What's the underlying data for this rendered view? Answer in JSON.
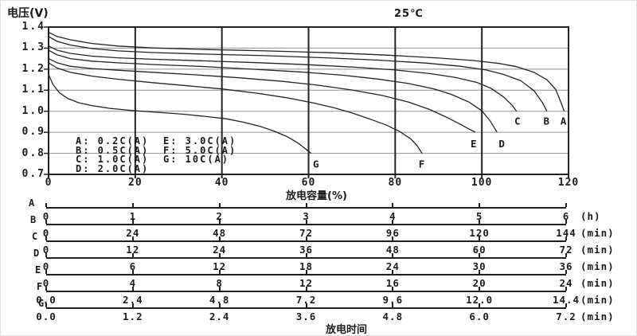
{
  "header": {
    "y_axis_title": "电压(V)",
    "temperature": "25℃"
  },
  "legend": {
    "col1": [
      "A: 0.2C(A)",
      "B: 0.5C(A)",
      "C: 1.0C(A)",
      "D: 2.0C(A)"
    ],
    "col2": [
      "E: 3.0C(A)",
      "F: 5.0C(A)",
      "G: 10C(A)"
    ]
  },
  "chart_data": {
    "type": "line",
    "title": "25℃",
    "xlabel": "放电容量(%)",
    "ylabel": "电压(V)",
    "xlim": [
      0,
      120
    ],
    "ylim": [
      0.7,
      1.4
    ],
    "x_ticks": [
      0,
      20,
      40,
      60,
      80,
      100,
      120
    ],
    "y_ticks": [
      1.4,
      1.3,
      1.2,
      1.1,
      1.0,
      0.9,
      0.8,
      0.7
    ],
    "grid": true,
    "legend_position": "inside-lower-left",
    "series": [
      {
        "name": "A",
        "rate": "0.2C(A)",
        "label_at": [
          118.8,
          0.952
        ],
        "points": [
          [
            0,
            1.375
          ],
          [
            2,
            1.355
          ],
          [
            5,
            1.34
          ],
          [
            10,
            1.322
          ],
          [
            16,
            1.31
          ],
          [
            24,
            1.301
          ],
          [
            35,
            1.294
          ],
          [
            50,
            1.287
          ],
          [
            65,
            1.278
          ],
          [
            78,
            1.267
          ],
          [
            90,
            1.253
          ],
          [
            98,
            1.241
          ],
          [
            104,
            1.227
          ],
          [
            108,
            1.212
          ],
          [
            112,
            1.185
          ],
          [
            115,
            1.15
          ],
          [
            117,
            1.105
          ],
          [
            118.3,
            1.04
          ],
          [
            119,
            1.0
          ]
        ]
      },
      {
        "name": "B",
        "rate": "0.5C(A)",
        "label_at": [
          114.9,
          0.952
        ],
        "points": [
          [
            0,
            1.355
          ],
          [
            2,
            1.332
          ],
          [
            5,
            1.315
          ],
          [
            10,
            1.298
          ],
          [
            16,
            1.287
          ],
          [
            24,
            1.279
          ],
          [
            35,
            1.272
          ],
          [
            50,
            1.264
          ],
          [
            64,
            1.254
          ],
          [
            76,
            1.243
          ],
          [
            87,
            1.229
          ],
          [
            95,
            1.214
          ],
          [
            101,
            1.196
          ],
          [
            105,
            1.175
          ],
          [
            109,
            1.145
          ],
          [
            112,
            1.098
          ],
          [
            114,
            1.04
          ],
          [
            115,
            1.0
          ]
        ]
      },
      {
        "name": "C",
        "rate": "1.0C(A)",
        "label_at": [
          108.2,
          0.952
        ],
        "points": [
          [
            0,
            1.31
          ],
          [
            2,
            1.29
          ],
          [
            5,
            1.275
          ],
          [
            10,
            1.262
          ],
          [
            16,
            1.254
          ],
          [
            24,
            1.247
          ],
          [
            35,
            1.24
          ],
          [
            48,
            1.231
          ],
          [
            60,
            1.221
          ],
          [
            71,
            1.209
          ],
          [
            80,
            1.196
          ],
          [
            88,
            1.179
          ],
          [
            94,
            1.16
          ],
          [
            99,
            1.136
          ],
          [
            102,
            1.11
          ],
          [
            105,
            1.068
          ],
          [
            107,
            1.028
          ],
          [
            108,
            1.0
          ]
        ]
      },
      {
        "name": "D",
        "rate": "2.0C(A)",
        "label_at": [
          104.6,
          0.843
        ],
        "points": [
          [
            0,
            1.29
          ],
          [
            2,
            1.268
          ],
          [
            5,
            1.25
          ],
          [
            10,
            1.238
          ],
          [
            16,
            1.23
          ],
          [
            24,
            1.222
          ],
          [
            35,
            1.213
          ],
          [
            47,
            1.2
          ],
          [
            58,
            1.187
          ],
          [
            68,
            1.171
          ],
          [
            76,
            1.153
          ],
          [
            83,
            1.132
          ],
          [
            89,
            1.106
          ],
          [
            93,
            1.08
          ],
          [
            97,
            1.044
          ],
          [
            100,
            1.002
          ],
          [
            102,
            0.952
          ],
          [
            103.5,
            0.9
          ]
        ]
      },
      {
        "name": "E",
        "rate": "3.0C(A)",
        "label_at": [
          98.1,
          0.843
        ],
        "points": [
          [
            0,
            1.25
          ],
          [
            2,
            1.23
          ],
          [
            5,
            1.214
          ],
          [
            10,
            1.203
          ],
          [
            16,
            1.195
          ],
          [
            24,
            1.185
          ],
          [
            34,
            1.173
          ],
          [
            44,
            1.159
          ],
          [
            54,
            1.142
          ],
          [
            62,
            1.124
          ],
          [
            70,
            1.101
          ],
          [
            77,
            1.075
          ],
          [
            83,
            1.044
          ],
          [
            88,
            1.008
          ],
          [
            92,
            0.97
          ],
          [
            95,
            0.938
          ],
          [
            97,
            0.916
          ],
          [
            98.5,
            0.9
          ]
        ]
      },
      {
        "name": "F",
        "rate": "5.0C(A)",
        "label_at": [
          86.1,
          0.747
        ],
        "points": [
          [
            0,
            1.23
          ],
          [
            2,
            1.205
          ],
          [
            5,
            1.185
          ],
          [
            10,
            1.167
          ],
          [
            16,
            1.152
          ],
          [
            24,
            1.136
          ],
          [
            32,
            1.121
          ],
          [
            40,
            1.106
          ],
          [
            48,
            1.086
          ],
          [
            55,
            1.064
          ],
          [
            61,
            1.04
          ],
          [
            66,
            1.016
          ],
          [
            70,
            0.992
          ],
          [
            74,
            0.964
          ],
          [
            78,
            0.934
          ],
          [
            81,
            0.904
          ],
          [
            83.5,
            0.87
          ],
          [
            85,
            0.838
          ],
          [
            86.2,
            0.8
          ]
        ]
      },
      {
        "name": "G",
        "rate": "10C(A)",
        "label_at": [
          61.7,
          0.747
        ],
        "points": [
          [
            0,
            1.175
          ],
          [
            1,
            1.128
          ],
          [
            2.5,
            1.088
          ],
          [
            4.5,
            1.06
          ],
          [
            7,
            1.04
          ],
          [
            10,
            1.027
          ],
          [
            14,
            1.014
          ],
          [
            19,
            1.004
          ],
          [
            25,
            0.995
          ],
          [
            31,
            0.986
          ],
          [
            36,
            0.976
          ],
          [
            41,
            0.964
          ],
          [
            45,
            0.948
          ],
          [
            49,
            0.927
          ],
          [
            52,
            0.906
          ],
          [
            55,
            0.88
          ],
          [
            57.5,
            0.85
          ],
          [
            59.5,
            0.818
          ],
          [
            60.6,
            0.8
          ]
        ]
      }
    ]
  },
  "time_axes": {
    "title": "放电时间",
    "rows": [
      {
        "letter": "A",
        "labels": [
          "0",
          "1",
          "2",
          "3",
          "4",
          "5",
          "6"
        ],
        "unit": "(h)"
      },
      {
        "letter": "B",
        "labels": [
          "0",
          "24",
          "48",
          "72",
          "96",
          "120",
          "144"
        ],
        "unit": "(min)"
      },
      {
        "letter": "C",
        "labels": [
          "0",
          "12",
          "24",
          "36",
          "48",
          "60",
          "72"
        ],
        "unit": "(min)"
      },
      {
        "letter": "D",
        "labels": [
          "0",
          "6",
          "12",
          "18",
          "24",
          "30",
          "36"
        ],
        "unit": "(min)"
      },
      {
        "letter": "E",
        "labels": [
          "0",
          "4",
          "8",
          "12",
          "16",
          "20",
          "24"
        ],
        "unit": "(min)"
      },
      {
        "letter": "F",
        "labels": [
          "0.0",
          "2.4",
          "4.8",
          "7.2",
          "9.6",
          "12.0",
          "14.4"
        ],
        "unit": "(min)"
      },
      {
        "letter": "G",
        "labels": [
          "0.0",
          "1.2",
          "2.4",
          "3.6",
          "4.8",
          "6.0",
          "7.2"
        ],
        "unit": "(min)"
      }
    ]
  },
  "colors": {
    "curve": "#222222",
    "grid_h": "#8f8f8f",
    "grid_v": "#222222",
    "text": "#1a1a1a"
  }
}
